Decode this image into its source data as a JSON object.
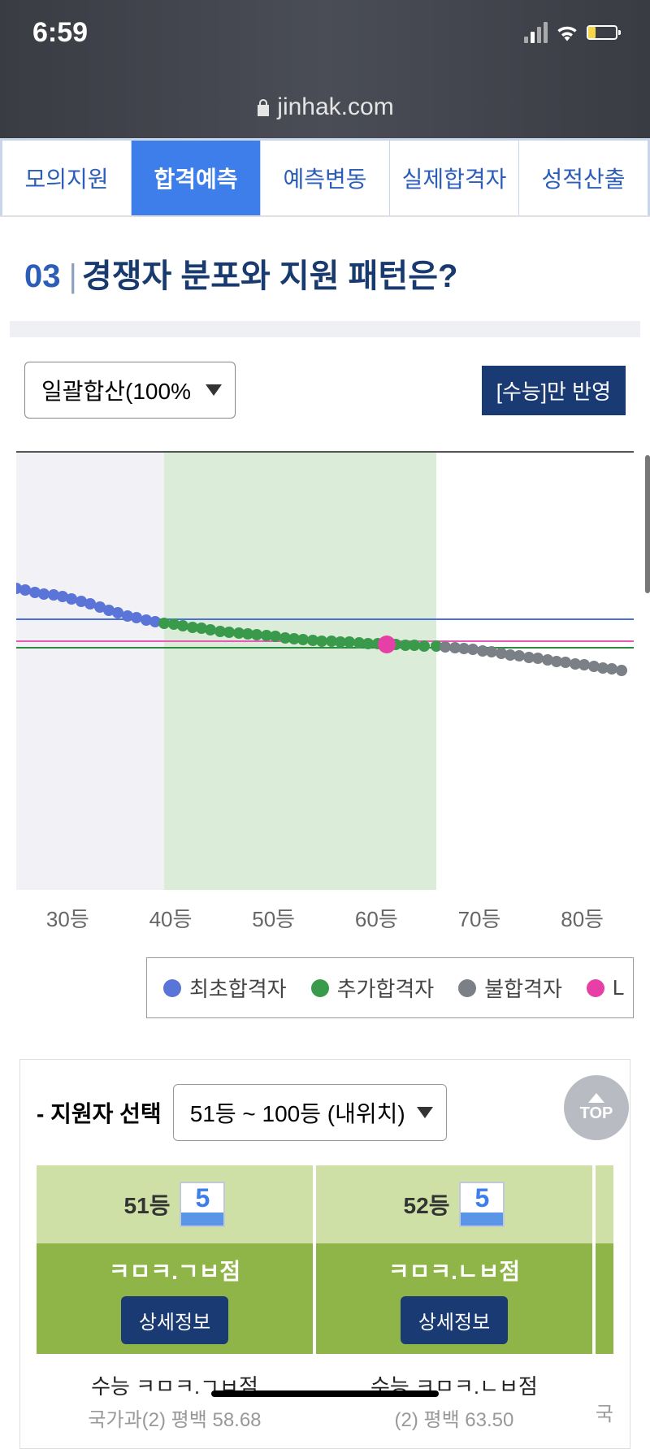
{
  "status": {
    "time": "6:59"
  },
  "url": {
    "domain": "jinhak.com"
  },
  "tabs": [
    {
      "label": "모의지원",
      "active": false
    },
    {
      "label": "합격예측",
      "active": true
    },
    {
      "label": "예측변동",
      "active": false
    },
    {
      "label": "실제합격자",
      "active": false
    },
    {
      "label": "성적산출",
      "active": false
    }
  ],
  "section": {
    "num": "03",
    "title": "경쟁자 분포와 지원 패턴은?"
  },
  "filter": {
    "select": "일괄합산(100%",
    "badge": "[수능]만 반영"
  },
  "chart": {
    "type": "scatter-line",
    "bg_colors": {
      "zone1": "#f2f2f6",
      "zone2": "#dbecd8"
    },
    "ref_lines": [
      {
        "color": "#4c6fd8",
        "y": 38
      },
      {
        "color": "#e85ab5",
        "y": 43
      },
      {
        "color": "#2a8a3e",
        "y": 44.5
      }
    ],
    "series_colors": {
      "initial": "#5b74d8",
      "additional": "#3a9a4c",
      "fail": "#7b7f86",
      "me": "#e63fa5"
    },
    "points": {
      "initial": [
        {
          "x": 0,
          "y": 31
        },
        {
          "x": 1.5,
          "y": 31.5
        },
        {
          "x": 3,
          "y": 32
        },
        {
          "x": 4.5,
          "y": 32.3
        },
        {
          "x": 6,
          "y": 32.6
        },
        {
          "x": 7.5,
          "y": 32.9
        },
        {
          "x": 9,
          "y": 33.4
        },
        {
          "x": 10.5,
          "y": 34
        },
        {
          "x": 12,
          "y": 34.6
        },
        {
          "x": 13.5,
          "y": 35.3
        },
        {
          "x": 15,
          "y": 36
        },
        {
          "x": 16.5,
          "y": 36.7
        },
        {
          "x": 18,
          "y": 37.3
        },
        {
          "x": 19.5,
          "y": 37.8
        },
        {
          "x": 21,
          "y": 38.2
        },
        {
          "x": 22.5,
          "y": 38.6
        }
      ],
      "additional": [
        {
          "x": 24,
          "y": 39
        },
        {
          "x": 25.5,
          "y": 39.3
        },
        {
          "x": 27,
          "y": 39.6
        },
        {
          "x": 28.5,
          "y": 39.9
        },
        {
          "x": 30,
          "y": 40.2
        },
        {
          "x": 31.5,
          "y": 40.5
        },
        {
          "x": 33,
          "y": 40.8
        },
        {
          "x": 34.5,
          "y": 41.1
        },
        {
          "x": 36,
          "y": 41.3
        },
        {
          "x": 37.5,
          "y": 41.5
        },
        {
          "x": 39,
          "y": 41.7
        },
        {
          "x": 40.5,
          "y": 41.9
        },
        {
          "x": 42,
          "y": 42.1
        },
        {
          "x": 43.5,
          "y": 42.3
        },
        {
          "x": 45,
          "y": 42.5
        },
        {
          "x": 46.5,
          "y": 42.7
        },
        {
          "x": 48,
          "y": 42.9
        },
        {
          "x": 49.5,
          "y": 43.1
        },
        {
          "x": 51,
          "y": 43.2
        },
        {
          "x": 52.5,
          "y": 43.3
        },
        {
          "x": 54,
          "y": 43.4
        },
        {
          "x": 55.5,
          "y": 43.5
        },
        {
          "x": 57,
          "y": 43.6
        },
        {
          "x": 58.5,
          "y": 43.7
        },
        {
          "x": 61.5,
          "y": 43.9
        },
        {
          "x": 63,
          "y": 44
        },
        {
          "x": 64.5,
          "y": 44.1
        },
        {
          "x": 66,
          "y": 44.2
        },
        {
          "x": 68,
          "y": 44.3
        }
      ],
      "fail": [
        {
          "x": 69.5,
          "y": 44.4
        },
        {
          "x": 71,
          "y": 44.6
        },
        {
          "x": 72.5,
          "y": 44.8
        },
        {
          "x": 74,
          "y": 45
        },
        {
          "x": 75.5,
          "y": 45.3
        },
        {
          "x": 77,
          "y": 45.6
        },
        {
          "x": 78.5,
          "y": 45.9
        },
        {
          "x": 80,
          "y": 46.2
        },
        {
          "x": 81.5,
          "y": 46.5
        },
        {
          "x": 83,
          "y": 46.8
        },
        {
          "x": 84.5,
          "y": 47.1
        },
        {
          "x": 86,
          "y": 47.4
        },
        {
          "x": 87.5,
          "y": 47.7
        },
        {
          "x": 89,
          "y": 48
        },
        {
          "x": 90.5,
          "y": 48.3
        },
        {
          "x": 92,
          "y": 48.6
        },
        {
          "x": 93.5,
          "y": 48.9
        },
        {
          "x": 95,
          "y": 49.2
        },
        {
          "x": 96.5,
          "y": 49.5
        },
        {
          "x": 98,
          "y": 49.8
        }
      ],
      "me": {
        "x": 60,
        "y": 43.8
      }
    },
    "x_ticks": [
      "30등",
      "40등",
      "50등",
      "60등",
      "70등",
      "80등"
    ]
  },
  "legend": [
    {
      "label": "최초합격자",
      "color": "#5b74d8"
    },
    {
      "label": "추가합격자",
      "color": "#3a9a4c"
    },
    {
      "label": "불합격자",
      "color": "#7b7f86"
    },
    {
      "label": "L",
      "color": "#e63fa5"
    }
  ],
  "applicant": {
    "label": "- 지원자 선택",
    "select": "51등 ~ 100등 (내위치)",
    "cards": [
      {
        "rank": "51등",
        "grade": "5",
        "score_prefix": "ㅋㅁㅋ.ㄱㅂ",
        "score_suffix": "점",
        "btn": "상세정보",
        "below1": "수능 ㅋㅁㅋ.ㄱㅂ점",
        "below2": "국가과(2) 평백 58.68"
      },
      {
        "rank": "52등",
        "grade": "5",
        "score_prefix": "ㅋㅁㅋ.ㄴㅂ",
        "score_suffix": "점",
        "btn": "상세정보",
        "below1": "수능 ㅋㅁㅋ.ㄴㅂ점",
        "below2": "(2) 평백 63.50"
      }
    ],
    "edge_below": "국"
  },
  "top_btn": "TOP"
}
